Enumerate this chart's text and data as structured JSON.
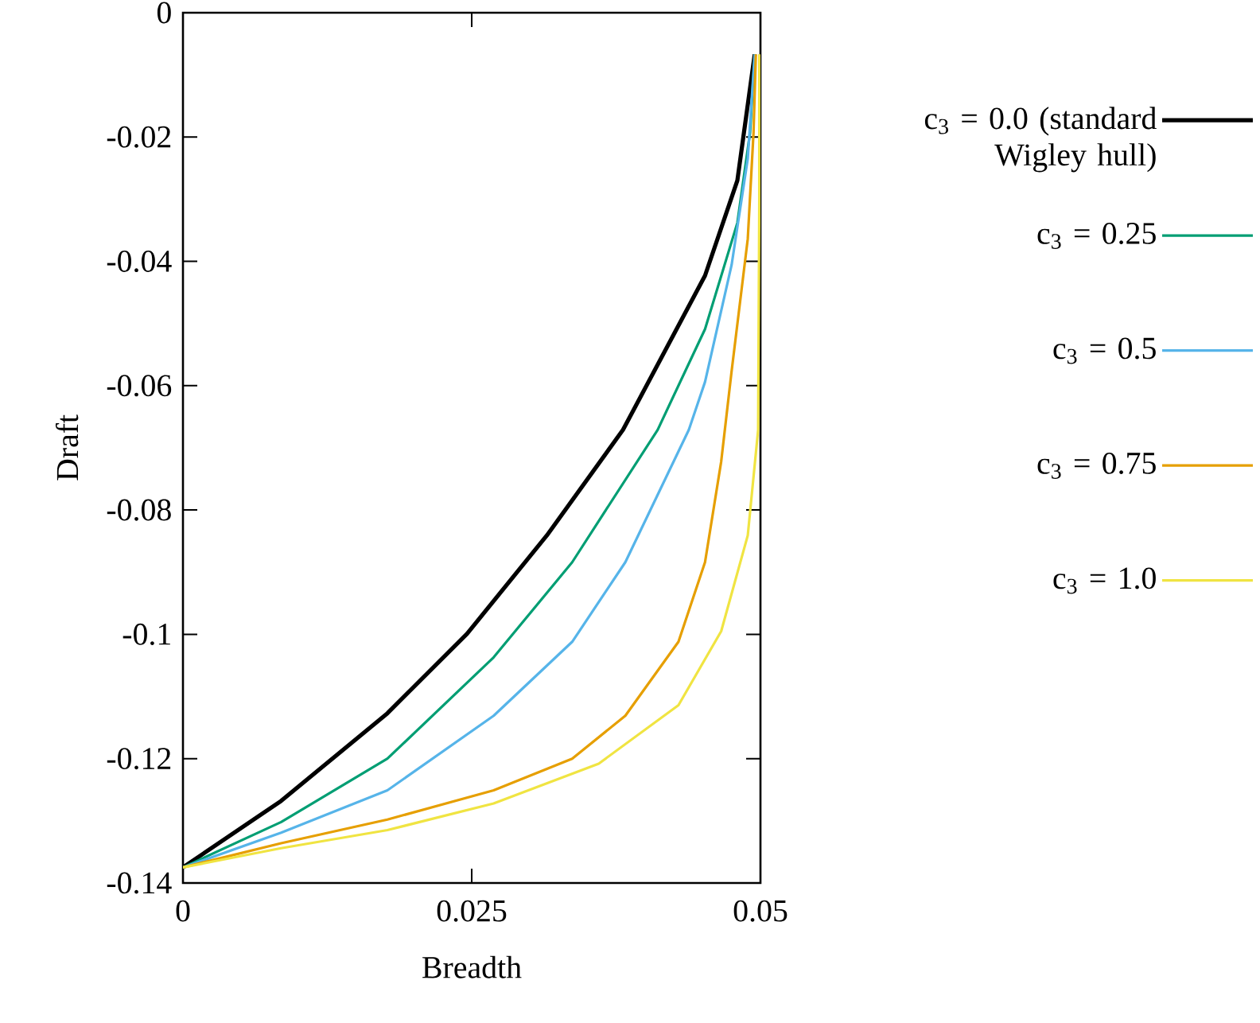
{
  "chart_data": {
    "type": "line",
    "xlabel": "Breadth",
    "ylabel": "Draft",
    "xlim": [
      0,
      0.05
    ],
    "ylim": [
      -0.14,
      0
    ],
    "xticks": [
      0,
      0.025,
      0.05
    ],
    "yticks": [
      0,
      -0.02,
      -0.04,
      -0.06,
      -0.08,
      -0.1,
      -0.12,
      -0.14
    ],
    "legend": "right",
    "series": [
      {
        "name": "c$_{3}$ = 0.0 (standard Wigley hull)",
        "color": "#000000",
        "x": [
          0,
          0.0085,
          0.0177,
          0.0246,
          0.0315,
          0.0381,
          0.0452,
          0.048,
          0.0495
        ],
        "values": [
          -0.1375,
          -0.1268,
          -0.1127,
          -0.0999,
          -0.0841,
          -0.0671,
          -0.0423,
          -0.027,
          -0.0067
        ]
      },
      {
        "name": "c$_{3}$ = 0.25",
        "color": "#009e73",
        "x": [
          0,
          0.0085,
          0.0177,
          0.0269,
          0.0337,
          0.0411,
          0.0452,
          0.048,
          0.0491,
          0.0495
        ],
        "values": [
          -0.1375,
          -0.1302,
          -0.12,
          -0.1037,
          -0.0884,
          -0.0671,
          -0.0509,
          -0.0338,
          -0.0193,
          -0.0067
        ]
      },
      {
        "name": "c$_{3}$ = 0.5",
        "color": "#56b4e9",
        "x": [
          0,
          0.0085,
          0.0177,
          0.0269,
          0.0337,
          0.0383,
          0.0438,
          0.0452,
          0.0475,
          0.0489,
          0.0495
        ],
        "values": [
          -0.1375,
          -0.1319,
          -0.1251,
          -0.1131,
          -0.1012,
          -0.0884,
          -0.0671,
          -0.0594,
          -0.0406,
          -0.0235,
          -0.0067
        ]
      },
      {
        "name": "c$_{3}$ = 0.75",
        "color": "#e69f00",
        "x": [
          0,
          0.0085,
          0.0177,
          0.0269,
          0.0337,
          0.0383,
          0.0429,
          0.0452,
          0.0466,
          0.0475,
          0.0489,
          0.0494,
          0.0496
        ],
        "values": [
          -0.1375,
          -0.1336,
          -0.1298,
          -0.1251,
          -0.12,
          -0.1131,
          -0.1012,
          -0.0884,
          -0.0722,
          -0.0577,
          -0.0364,
          -0.0193,
          -0.0067
        ]
      },
      {
        "name": "c$_{3}$ = 1.0",
        "color": "#f0e442",
        "x": [
          0,
          0.0085,
          0.0177,
          0.0269,
          0.036,
          0.0429,
          0.0466,
          0.0489,
          0.0498,
          0.0499,
          0.0499
        ],
        "values": [
          -0.1375,
          -0.1344,
          -0.1315,
          -0.1272,
          -0.1208,
          -0.1114,
          -0.0995,
          -0.0841,
          -0.0671,
          -0.03,
          -0.0067
        ]
      }
    ]
  }
}
